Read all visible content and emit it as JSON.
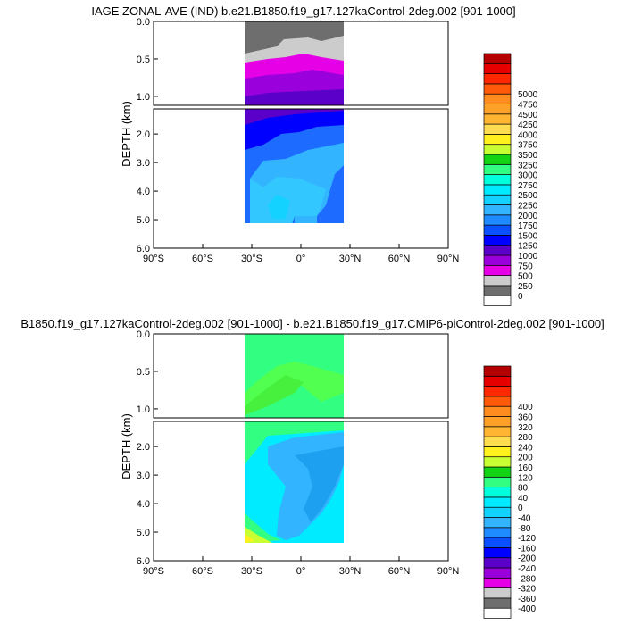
{
  "colors": {
    "top_scale": [
      "#ffffff",
      "#6e6e6e",
      "#cccccc",
      "#e600e6",
      "#9a00dc",
      "#5a00c8",
      "#0000ff",
      "#0a50ff",
      "#1e8cff",
      "#32b4ff",
      "#14d2ff",
      "#00ebff",
      "#00ffdc",
      "#32ff82",
      "#14d214",
      "#c8ff32",
      "#fff01e",
      "#ffdc50",
      "#ffb432",
      "#ffa028",
      "#ff8c1e",
      "#ff5a0a",
      "#ff2800",
      "#e60000",
      "#b40000"
    ],
    "diff_scale": [
      "#ffffff",
      "#6e6e6e",
      "#cccccc",
      "#e600e6",
      "#9a00dc",
      "#5a00c8",
      "#0000ff",
      "#0a50ff",
      "#1e8cff",
      "#32b4ff",
      "#14d2ff",
      "#00ebff",
      "#00ffdc",
      "#32ff82",
      "#14d214",
      "#c8ff32",
      "#fff01e",
      "#ffdc50",
      "#ffb432",
      "#ffa028",
      "#ff8c1e",
      "#ff5a0a",
      "#ff2800",
      "#e60000",
      "#b40000"
    ]
  },
  "chart_data": [
    {
      "type": "heatmap",
      "title": "IAGE ZONAL-AVE (IND) b.e21.B1850.f19_g17.127kaControl-2deg.002 [901-1000]",
      "ylabel": "DEPTH (km)",
      "xlabel": "",
      "x_ticks": [
        "90°S",
        "60°S",
        "30°S",
        "0°",
        "30°N",
        "60°N",
        "90°N"
      ],
      "y_ticks_upper": [
        "0.0",
        "0.5",
        "1.0"
      ],
      "y_ticks_lower": [
        "2.0",
        "3.0",
        "4.0",
        "5.0",
        "6.0"
      ],
      "xlim": [
        -90,
        90
      ],
      "ylim_km": [
        0,
        6
      ],
      "data_extent_lat": [
        -33,
        25
      ],
      "colorbar_labels": [
        "0",
        "250",
        "500",
        "750",
        "1000",
        "1250",
        "1500",
        "1750",
        "2000",
        "2250",
        "2500",
        "2750",
        "3000",
        "3250",
        "3500",
        "3750",
        "4000",
        "4250",
        "4500",
        "4750",
        "5000"
      ],
      "grid": false
    },
    {
      "type": "heatmap",
      "title": "B1850.f19_g17.127kaControl-2deg.002 [901-1000] - b.e21.B1850.f19_g17.CMIP6-piControl-2deg.002 [901-1000]",
      "ylabel": "DEPTH (km)",
      "xlabel": "",
      "x_ticks": [
        "90°S",
        "60°S",
        "30°S",
        "0°",
        "30°N",
        "60°N",
        "90°N"
      ],
      "y_ticks_upper": [
        "0.0",
        "0.5",
        "1.0"
      ],
      "y_ticks_lower": [
        "2.0",
        "3.0",
        "4.0",
        "5.0",
        "6.0"
      ],
      "xlim": [
        -90,
        90
      ],
      "ylim_km": [
        0,
        6
      ],
      "data_extent_lat": [
        -33,
        25
      ],
      "colorbar_labels": [
        "-400",
        "-360",
        "-320",
        "-280",
        "-240",
        "-200",
        "-160",
        "-120",
        "-80",
        "-40",
        "0",
        "40",
        "80",
        "120",
        "160",
        "200",
        "240",
        "280",
        "320",
        "360",
        "400"
      ],
      "grid": false
    }
  ]
}
